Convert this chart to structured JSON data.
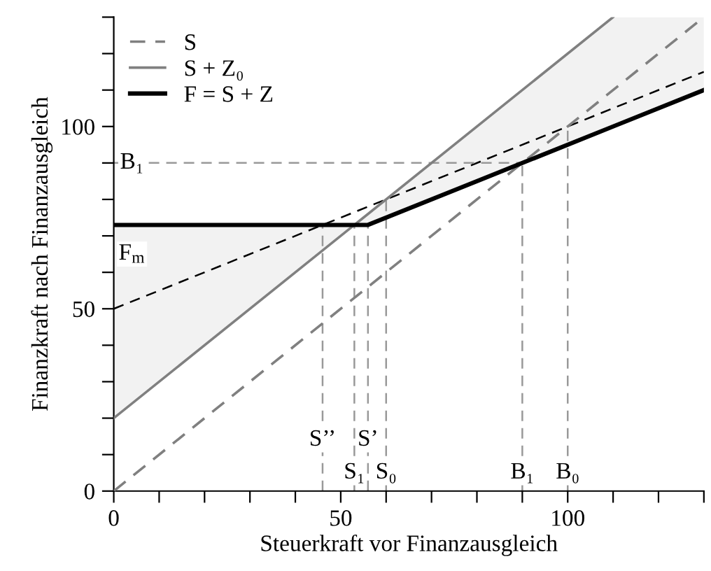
{
  "chart_data": {
    "type": "line",
    "xlabel": "Steuerkraft vor Finanzausgleich",
    "ylabel": "Finanzkraft nach Finanzausgleich",
    "xlim": [
      0,
      130
    ],
    "ylim": [
      0,
      130
    ],
    "xticks": [
      0,
      {
        "value": 10,
        "label": null
      },
      {
        "value": 20,
        "label": null
      },
      {
        "value": 30,
        "label": null
      },
      {
        "value": 40,
        "label": null
      },
      50,
      {
        "value": 60,
        "label": null
      },
      {
        "value": 70,
        "label": null
      },
      {
        "value": 80,
        "label": null
      },
      {
        "value": 90,
        "label": null
      },
      100,
      {
        "value": 110,
        "label": null
      },
      {
        "value": 120,
        "label": null
      },
      {
        "value": 130,
        "label": null
      }
    ],
    "yticks": [
      0,
      {
        "value": 10,
        "label": null
      },
      {
        "value": 20,
        "label": null
      },
      {
        "value": 30,
        "label": null
      },
      {
        "value": 40,
        "label": null
      },
      50,
      {
        "value": 60,
        "label": null
      },
      {
        "value": 70,
        "label": null
      },
      {
        "value": 80,
        "label": null
      },
      {
        "value": 90,
        "label": null
      },
      100,
      {
        "value": 110,
        "label": null
      },
      {
        "value": 120,
        "label": null
      },
      {
        "value": 130,
        "label": null
      }
    ],
    "grid": false,
    "legend": "top left",
    "marker": "none",
    "series": [
      {
        "name": "S",
        "color": "#808080",
        "line_style": "dashed",
        "x": [
          0,
          130
        ],
        "values": [
          0,
          130
        ]
      },
      {
        "name": "S + Z₀",
        "color": "#808080",
        "line_style": "solid",
        "x": [
          0,
          110
        ],
        "values": [
          20,
          130
        ]
      },
      {
        "name": "F = S + Z",
        "color": "#000000",
        "line_style": "solid",
        "x": [
          0,
          53,
          56,
          110,
          130
        ],
        "values": [
          73,
          73,
          73,
          100,
          110
        ],
        "lower": [
          20,
          73,
          73,
          100,
          110
        ],
        "upper": [
          73,
          73,
          76,
          130,
          130
        ]
      },
      {
        "color": "#000000",
        "line_style": "dashed",
        "x": [
          0,
          130
        ],
        "values": [
          50,
          115
        ]
      },
      {
        "color": "#999999",
        "line_style": "dashed",
        "x": [
          0,
          90
        ],
        "values": [
          90,
          90
        ]
      },
      {
        "color": "#999999",
        "line_style": "dashed",
        "x": [
          46,
          46
        ],
        "values": [
          0,
          73
        ]
      },
      {
        "color": "#999999",
        "line_style": "dashed",
        "x": [
          53,
          53
        ],
        "values": [
          0,
          73
        ]
      },
      {
        "color": "#999999",
        "line_style": "dashed",
        "x": [
          56,
          56
        ],
        "values": [
          0,
          73
        ]
      },
      {
        "color": "#999999",
        "line_style": "dashed",
        "x": [
          60,
          60
        ],
        "values": [
          0,
          80
        ]
      },
      {
        "color": "#999999",
        "line_style": "dashed",
        "x": [
          90,
          90
        ],
        "values": [
          0,
          90
        ]
      },
      {
        "color": "#999999",
        "line_style": "dashed",
        "x": [
          100,
          100
        ],
        "values": [
          0,
          100
        ]
      }
    ],
    "annotations": [
      {
        "text": "B₁",
        "x": 4,
        "y": 90
      },
      {
        "text": "F$_{m}$",
        "x": 4,
        "y": 65
      },
      {
        "text": "S’’",
        "x": 46,
        "y": 14
      },
      {
        "text": "S’",
        "x": 56,
        "y": 14
      },
      {
        "text": "S₁",
        "x": 53,
        "y": 5
      },
      {
        "text": "S₀",
        "x": 60,
        "y": 5
      },
      {
        "text": "B₁",
        "x": 90,
        "y": 5
      },
      {
        "text": "B₀",
        "x": 100,
        "y": 5
      }
    ]
  }
}
